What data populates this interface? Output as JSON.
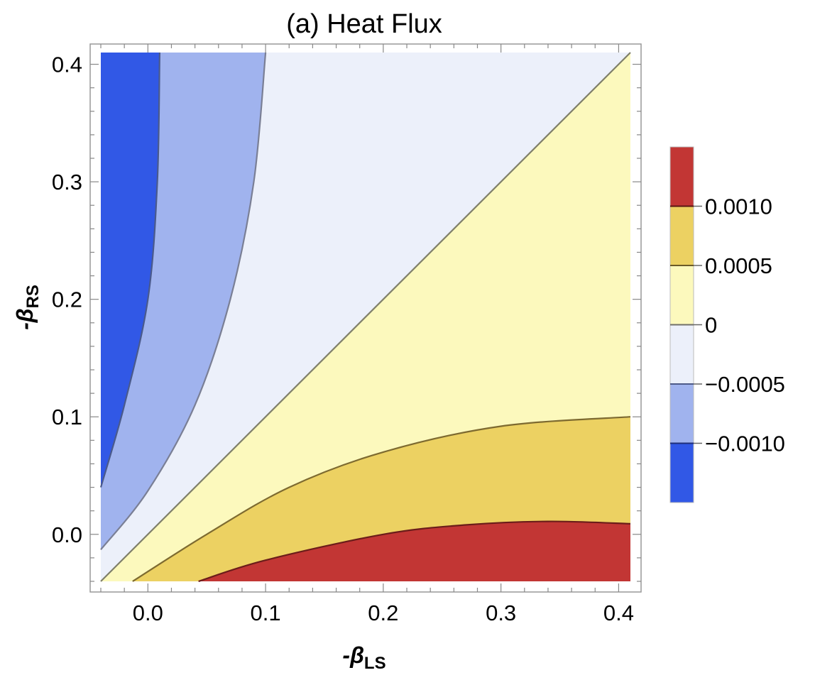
{
  "chart_data": {
    "type": "contour",
    "title": "(a) Heat Flux",
    "xlabel": {
      "sign": "-",
      "symbol": "β",
      "sub": "LS"
    },
    "ylabel": {
      "sign": "-",
      "symbol": "β",
      "sub": "RS"
    },
    "xlim": [
      -0.04,
      0.41
    ],
    "ylim": [
      -0.04,
      0.41
    ],
    "x_ticks": [
      "0.0",
      "0.1",
      "0.2",
      "0.3",
      "0.4"
    ],
    "y_ticks": [
      "0.0",
      "0.1",
      "0.2",
      "0.3",
      "0.4"
    ],
    "x_tick_values": [
      0.0,
      0.1,
      0.2,
      0.3,
      0.4
    ],
    "y_tick_values": [
      0.0,
      0.1,
      0.2,
      0.3,
      0.4
    ],
    "grid": false,
    "legend_placement": "right",
    "contour_levels": [
      -0.001,
      -0.0005,
      0,
      0.0005,
      0.001
    ],
    "legend_labels": [
      "0.0010",
      "0.0005",
      "0",
      "−0.0005",
      "−0.0010"
    ],
    "band_colors": {
      "below_-0.0010": "#3158e6",
      "-0.0010_to_-0.0005": "#a0b3ee",
      "-0.0005_to_0": "#ecf0fa",
      "0_to_0.0005": "#fcf9bd",
      "0.0005_to_0.0010": "#ecd162",
      "above_0.0010": "#c23634"
    },
    "contour_lines": [
      {
        "level": -0.001,
        "points": [
          [
            -0.04,
            0.04
          ],
          [
            -0.02,
            0.11
          ],
          [
            0.0,
            0.2
          ],
          [
            0.008,
            0.3
          ],
          [
            0.01,
            0.41
          ]
        ]
      },
      {
        "level": -0.0005,
        "points": [
          [
            -0.04,
            -0.013
          ],
          [
            0.0,
            0.037
          ],
          [
            0.04,
            0.11
          ],
          [
            0.07,
            0.2
          ],
          [
            0.09,
            0.3
          ],
          [
            0.1,
            0.41
          ]
        ]
      },
      {
        "level": 0,
        "points": [
          [
            -0.04,
            -0.04
          ],
          [
            0.41,
            0.41
          ]
        ]
      },
      {
        "level": 0.0005,
        "points": [
          [
            -0.013,
            -0.04
          ],
          [
            0.05,
            0.0
          ],
          [
            0.12,
            0.04
          ],
          [
            0.2,
            0.07
          ],
          [
            0.3,
            0.092
          ],
          [
            0.41,
            0.1
          ]
        ]
      },
      {
        "level": 0.001,
        "points": [
          [
            0.043,
            -0.04
          ],
          [
            0.1,
            -0.022
          ],
          [
            0.2,
            0.0
          ],
          [
            0.27,
            0.008
          ],
          [
            0.34,
            0.011
          ],
          [
            0.41,
            0.009
          ]
        ]
      }
    ]
  }
}
